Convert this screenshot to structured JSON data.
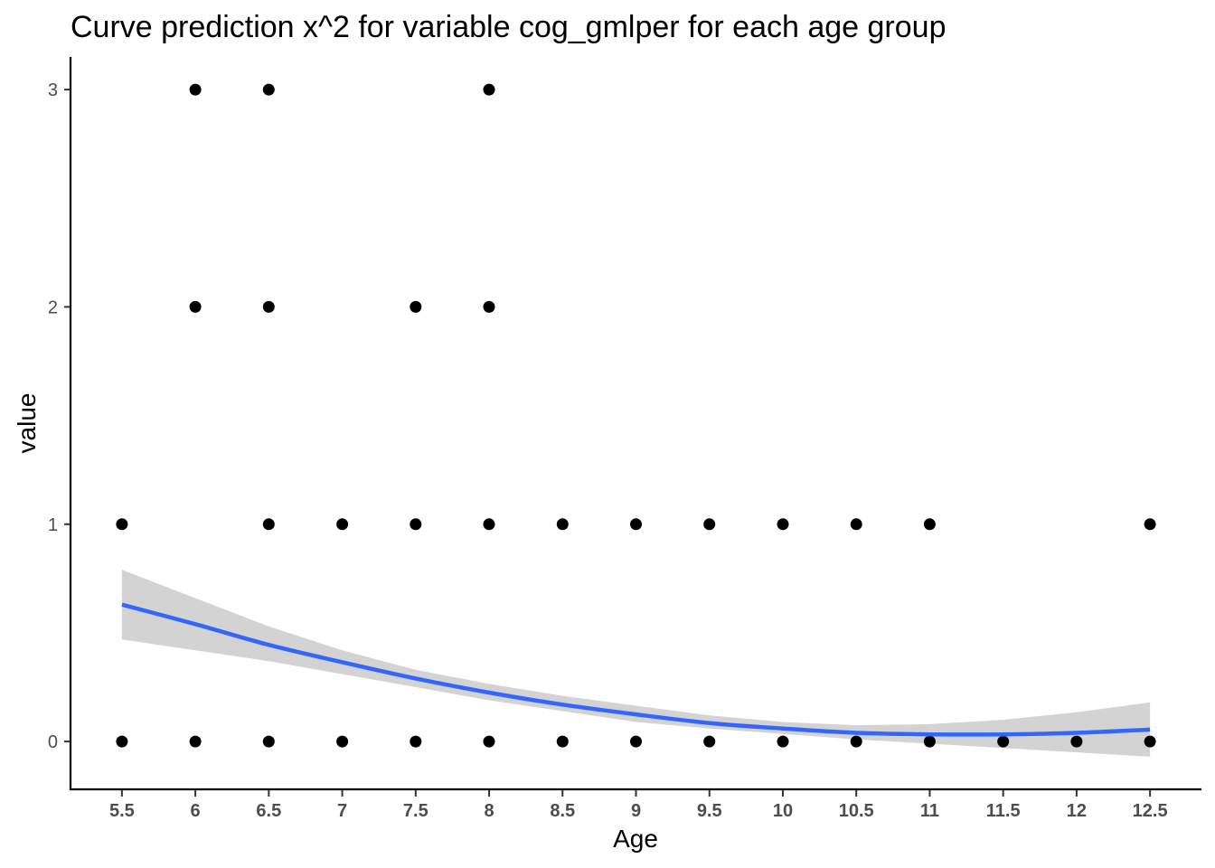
{
  "chart_data": {
    "type": "scatter",
    "title": "Curve prediction x^2  for variable cog_gmlper for each age group",
    "xlabel": "Age",
    "ylabel": "value",
    "xlim": [
      5.15,
      12.85
    ],
    "ylim": [
      -0.22,
      3.15
    ],
    "x_ticks": [
      5.5,
      6,
      6.5,
      7,
      7.5,
      8,
      8.5,
      9,
      9.5,
      10,
      10.5,
      11,
      11.5,
      12,
      12.5
    ],
    "x_tick_labels": [
      "5.5",
      "6",
      "6.5",
      "7",
      "7.5",
      "8",
      "8.5",
      "9",
      "9.5",
      "10",
      "10.5",
      "11",
      "11.5",
      "12",
      "12.5"
    ],
    "y_ticks": [
      0,
      1,
      2,
      3
    ],
    "y_tick_labels": [
      "0",
      "1",
      "2",
      "3"
    ],
    "grid": false,
    "points": {
      "color": "#000000",
      "data": [
        {
          "x": 5.5,
          "y": 1
        },
        {
          "x": 5.5,
          "y": 0
        },
        {
          "x": 6,
          "y": 3
        },
        {
          "x": 6,
          "y": 2
        },
        {
          "x": 6,
          "y": 0
        },
        {
          "x": 6.5,
          "y": 3
        },
        {
          "x": 6.5,
          "y": 2
        },
        {
          "x": 6.5,
          "y": 1
        },
        {
          "x": 6.5,
          "y": 0
        },
        {
          "x": 7,
          "y": 1
        },
        {
          "x": 7,
          "y": 0
        },
        {
          "x": 7.5,
          "y": 2
        },
        {
          "x": 7.5,
          "y": 1
        },
        {
          "x": 7.5,
          "y": 0
        },
        {
          "x": 8,
          "y": 3
        },
        {
          "x": 8,
          "y": 2
        },
        {
          "x": 8,
          "y": 1
        },
        {
          "x": 8,
          "y": 0
        },
        {
          "x": 8.5,
          "y": 1
        },
        {
          "x": 8.5,
          "y": 0
        },
        {
          "x": 9,
          "y": 1
        },
        {
          "x": 9,
          "y": 0
        },
        {
          "x": 9.5,
          "y": 1
        },
        {
          "x": 9.5,
          "y": 0
        },
        {
          "x": 10,
          "y": 1
        },
        {
          "x": 10,
          "y": 0
        },
        {
          "x": 10.5,
          "y": 1
        },
        {
          "x": 10.5,
          "y": 0
        },
        {
          "x": 11,
          "y": 1
        },
        {
          "x": 11,
          "y": 0
        },
        {
          "x": 11.5,
          "y": 0
        },
        {
          "x": 12,
          "y": 0
        },
        {
          "x": 12.5,
          "y": 1
        },
        {
          "x": 12.5,
          "y": 0
        }
      ]
    },
    "fit": {
      "color": "#3366ff",
      "band_color": "#d3d3d3",
      "x": [
        5.5,
        6,
        6.5,
        7,
        7.5,
        8,
        8.5,
        9,
        9.5,
        10,
        10.5,
        11,
        11.5,
        12,
        12.5
      ],
      "y": [
        0.63,
        0.54,
        0.445,
        0.365,
        0.29,
        0.225,
        0.17,
        0.125,
        0.085,
        0.06,
        0.04,
        0.033,
        0.033,
        0.04,
        0.055
      ],
      "lower": [
        0.47,
        0.42,
        0.37,
        0.31,
        0.25,
        0.19,
        0.14,
        0.09,
        0.06,
        0.035,
        0.01,
        -0.01,
        -0.03,
        -0.05,
        -0.07
      ],
      "upper": [
        0.79,
        0.66,
        0.53,
        0.42,
        0.33,
        0.265,
        0.21,
        0.165,
        0.12,
        0.09,
        0.075,
        0.08,
        0.1,
        0.135,
        0.18
      ]
    }
  }
}
